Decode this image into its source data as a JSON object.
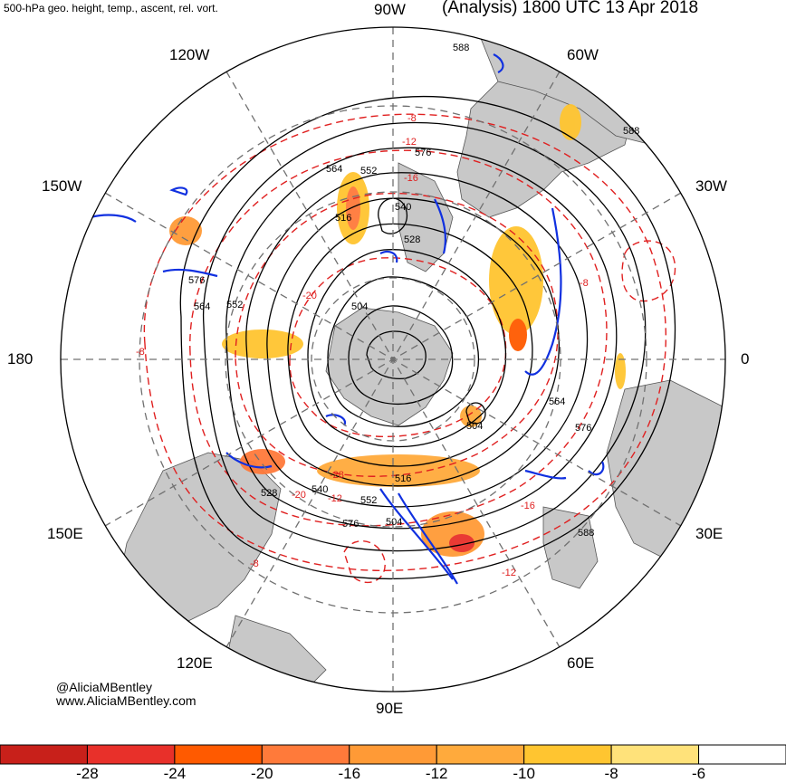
{
  "header": {
    "title_left": "500-hPa geo. height, temp., ascent, rel. vort.",
    "title_right": "(Analysis) 1800 UTC 13 Apr 2018"
  },
  "longitude_labels": {
    "lon_90w": "90W",
    "lon_60w": "60W",
    "lon_30w": "30W",
    "lon_0": "0",
    "lon_30e": "30E",
    "lon_60e": "60E",
    "lon_90e": "90E",
    "lon_120e": "120E",
    "lon_150e": "150E",
    "lon_180": "180",
    "lon_150w": "150W",
    "lon_120w": "120W"
  },
  "contour_labels": {
    "height": [
      "588",
      "588",
      "588",
      "576",
      "576",
      "576",
      "576",
      "564",
      "564",
      "564",
      "552",
      "552",
      "552",
      "540",
      "540",
      "528",
      "528",
      "516",
      "516",
      "504",
      "504",
      "504"
    ],
    "temperature": [
      "-8",
      "-8",
      "-8",
      "-8",
      "-12",
      "-12",
      "-12",
      "-16",
      "-16",
      "-20",
      "-20",
      "-28"
    ]
  },
  "credits": {
    "handle": "@AliciaMBentley",
    "website": "www.AliciaMBentley.com"
  },
  "colorbar": {
    "colors": [
      "#c8201a",
      "#e8302a",
      "#ff5a00",
      "#ff7a3a",
      "#ff9a36",
      "#ffaa3c",
      "#ffc530",
      "#ffe27a",
      "#ffffff"
    ],
    "ticks": [
      "-28",
      "-24",
      "-20",
      "-16",
      "-12",
      "-10",
      "-8",
      "-6"
    ]
  },
  "style_colors": {
    "land": "#c8c8c8",
    "height_contour": "#000000",
    "temperature_contour": "#e02020",
    "vorticity_contour": "#1030e0",
    "grid": "#707070"
  }
}
